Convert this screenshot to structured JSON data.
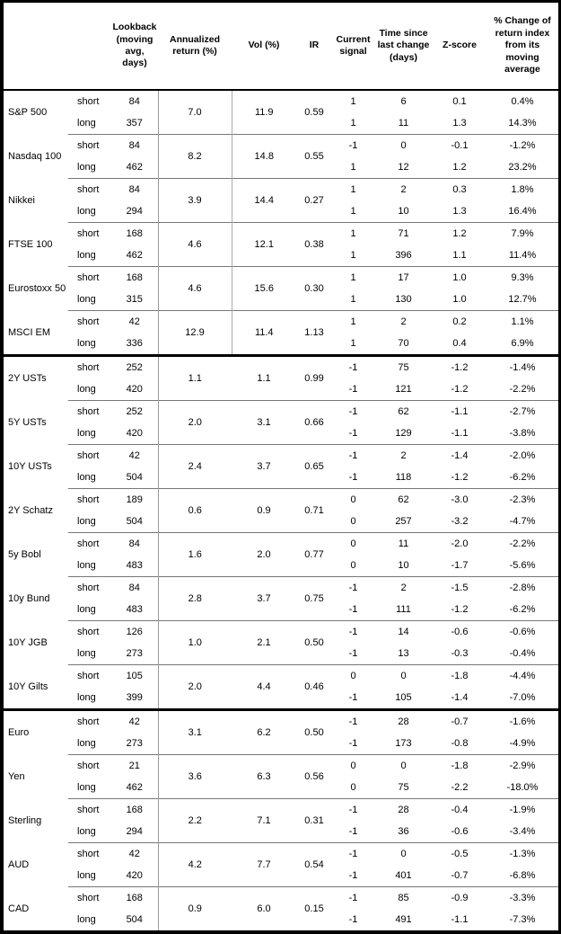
{
  "table": {
    "headers": [
      "",
      "",
      "Lookback (moving avg, days)",
      "Annualized return (%)",
      "Vol (%)",
      "IR",
      "Current signal",
      "Time since last change (days)",
      "Z-score",
      "% Change of return index from its moving average"
    ],
    "row_labels": {
      "short": "short",
      "long": "long"
    },
    "groups": [
      {
        "asset": "S&P 500",
        "section": "equities",
        "annualized_return_pct": "7.0",
        "vol_pct": "11.9",
        "ir": "0.59",
        "rows": [
          {
            "horizon": "short",
            "lookback": "84",
            "current_signal": "1",
            "days_since_change": "6",
            "z_score": "0.1",
            "pct_change_from_ma": "0.4%"
          },
          {
            "horizon": "long",
            "lookback": "357",
            "current_signal": "1",
            "days_since_change": "11",
            "z_score": "1.3",
            "pct_change_from_ma": "14.3%"
          }
        ]
      },
      {
        "asset": "Nasdaq 100",
        "section": "equities",
        "annualized_return_pct": "8.2",
        "vol_pct": "14.8",
        "ir": "0.55",
        "rows": [
          {
            "horizon": "short",
            "lookback": "84",
            "current_signal": "-1",
            "days_since_change": "0",
            "z_score": "-0.1",
            "pct_change_from_ma": "-1.2%"
          },
          {
            "horizon": "long",
            "lookback": "462",
            "current_signal": "1",
            "days_since_change": "12",
            "z_score": "1.2",
            "pct_change_from_ma": "23.2%"
          }
        ]
      },
      {
        "asset": "Nikkei",
        "section": "equities",
        "annualized_return_pct": "3.9",
        "vol_pct": "14.4",
        "ir": "0.27",
        "rows": [
          {
            "horizon": "short",
            "lookback": "84",
            "current_signal": "1",
            "days_since_change": "2",
            "z_score": "0.3",
            "pct_change_from_ma": "1.8%"
          },
          {
            "horizon": "long",
            "lookback": "294",
            "current_signal": "1",
            "days_since_change": "10",
            "z_score": "1.3",
            "pct_change_from_ma": "16.4%"
          }
        ]
      },
      {
        "asset": "FTSE 100",
        "section": "equities",
        "annualized_return_pct": "4.6",
        "vol_pct": "12.1",
        "ir": "0.38",
        "rows": [
          {
            "horizon": "short",
            "lookback": "168",
            "current_signal": "1",
            "days_since_change": "71",
            "z_score": "1.2",
            "pct_change_from_ma": "7.9%"
          },
          {
            "horizon": "long",
            "lookback": "462",
            "current_signal": "1",
            "days_since_change": "396",
            "z_score": "1.1",
            "pct_change_from_ma": "11.4%"
          }
        ]
      },
      {
        "asset": "Eurostoxx 50",
        "section": "equities",
        "annualized_return_pct": "4.6",
        "vol_pct": "15.6",
        "ir": "0.30",
        "rows": [
          {
            "horizon": "short",
            "lookback": "168",
            "current_signal": "1",
            "days_since_change": "17",
            "z_score": "1.0",
            "pct_change_from_ma": "9.3%"
          },
          {
            "horizon": "long",
            "lookback": "315",
            "current_signal": "1",
            "days_since_change": "130",
            "z_score": "1.0",
            "pct_change_from_ma": "12.7%"
          }
        ]
      },
      {
        "asset": "MSCI EM",
        "section": "equities",
        "annualized_return_pct": "12.9",
        "vol_pct": "11.4",
        "ir": "1.13",
        "rows": [
          {
            "horizon": "short",
            "lookback": "42",
            "current_signal": "1",
            "days_since_change": "2",
            "z_score": "0.2",
            "pct_change_from_ma": "1.1%"
          },
          {
            "horizon": "long",
            "lookback": "336",
            "current_signal": "1",
            "days_since_change": "70",
            "z_score": "0.4",
            "pct_change_from_ma": "6.9%"
          }
        ]
      },
      {
        "asset": "2Y USTs",
        "section": "bonds",
        "annualized_return_pct": "1.1",
        "vol_pct": "1.1",
        "ir": "0.99",
        "rows": [
          {
            "horizon": "short",
            "lookback": "252",
            "current_signal": "-1",
            "days_since_change": "75",
            "z_score": "-1.2",
            "pct_change_from_ma": "-1.4%"
          },
          {
            "horizon": "long",
            "lookback": "420",
            "current_signal": "-1",
            "days_since_change": "121",
            "z_score": "-1.2",
            "pct_change_from_ma": "-2.2%"
          }
        ]
      },
      {
        "asset": "5Y USTs",
        "section": "bonds",
        "annualized_return_pct": "2.0",
        "vol_pct": "3.1",
        "ir": "0.66",
        "rows": [
          {
            "horizon": "short",
            "lookback": "252",
            "current_signal": "-1",
            "days_since_change": "62",
            "z_score": "-1.1",
            "pct_change_from_ma": "-2.7%"
          },
          {
            "horizon": "long",
            "lookback": "420",
            "current_signal": "-1",
            "days_since_change": "129",
            "z_score": "-1.1",
            "pct_change_from_ma": "-3.8%"
          }
        ]
      },
      {
        "asset": "10Y USTs",
        "section": "bonds",
        "annualized_return_pct": "2.4",
        "vol_pct": "3.7",
        "ir": "0.65",
        "rows": [
          {
            "horizon": "short",
            "lookback": "42",
            "current_signal": "-1",
            "days_since_change": "2",
            "z_score": "-1.4",
            "pct_change_from_ma": "-2.0%"
          },
          {
            "horizon": "long",
            "lookback": "504",
            "current_signal": "-1",
            "days_since_change": "118",
            "z_score": "-1.2",
            "pct_change_from_ma": "-6.2%"
          }
        ]
      },
      {
        "asset": "2Y Schatz",
        "section": "bonds",
        "annualized_return_pct": "0.6",
        "vol_pct": "0.9",
        "ir": "0.71",
        "rows": [
          {
            "horizon": "short",
            "lookback": "189",
            "current_signal": "0",
            "days_since_change": "62",
            "z_score": "-3.0",
            "pct_change_from_ma": "-2.3%"
          },
          {
            "horizon": "long",
            "lookback": "504",
            "current_signal": "0",
            "days_since_change": "257",
            "z_score": "-3.2",
            "pct_change_from_ma": "-4.7%"
          }
        ]
      },
      {
        "asset": "5y Bobl",
        "section": "bonds",
        "annualized_return_pct": "1.6",
        "vol_pct": "2.0",
        "ir": "0.77",
        "rows": [
          {
            "horizon": "short",
            "lookback": "84",
            "current_signal": "0",
            "days_since_change": "11",
            "z_score": "-2.0",
            "pct_change_from_ma": "-2.2%"
          },
          {
            "horizon": "long",
            "lookback": "483",
            "current_signal": "0",
            "days_since_change": "10",
            "z_score": "-1.7",
            "pct_change_from_ma": "-5.6%"
          }
        ]
      },
      {
        "asset": "10y Bund",
        "section": "bonds",
        "annualized_return_pct": "2.8",
        "vol_pct": "3.7",
        "ir": "0.75",
        "rows": [
          {
            "horizon": "short",
            "lookback": "84",
            "current_signal": "-1",
            "days_since_change": "2",
            "z_score": "-1.5",
            "pct_change_from_ma": "-2.8%"
          },
          {
            "horizon": "long",
            "lookback": "483",
            "current_signal": "-1",
            "days_since_change": "111",
            "z_score": "-1.2",
            "pct_change_from_ma": "-6.2%"
          }
        ]
      },
      {
        "asset": "10Y JGB",
        "section": "bonds",
        "annualized_return_pct": "1.0",
        "vol_pct": "2.1",
        "ir": "0.50",
        "rows": [
          {
            "horizon": "short",
            "lookback": "126",
            "current_signal": "-1",
            "days_since_change": "14",
            "z_score": "-0.6",
            "pct_change_from_ma": "-0.6%"
          },
          {
            "horizon": "long",
            "lookback": "273",
            "current_signal": "-1",
            "days_since_change": "13",
            "z_score": "-0.3",
            "pct_change_from_ma": "-0.4%"
          }
        ]
      },
      {
        "asset": "10Y Gilts",
        "section": "bonds",
        "annualized_return_pct": "2.0",
        "vol_pct": "4.4",
        "ir": "0.46",
        "rows": [
          {
            "horizon": "short",
            "lookback": "105",
            "current_signal": "0",
            "days_since_change": "0",
            "z_score": "-1.8",
            "pct_change_from_ma": "-4.4%"
          },
          {
            "horizon": "long",
            "lookback": "399",
            "current_signal": "-1",
            "days_since_change": "105",
            "z_score": "-1.4",
            "pct_change_from_ma": "-7.0%"
          }
        ]
      },
      {
        "asset": "Euro",
        "section": "fx",
        "annualized_return_pct": "3.1",
        "vol_pct": "6.2",
        "ir": "0.50",
        "rows": [
          {
            "horizon": "short",
            "lookback": "42",
            "current_signal": "-1",
            "days_since_change": "28",
            "z_score": "-0.7",
            "pct_change_from_ma": "-1.6%"
          },
          {
            "horizon": "long",
            "lookback": "273",
            "current_signal": "-1",
            "days_since_change": "173",
            "z_score": "-0.8",
            "pct_change_from_ma": "-4.9%"
          }
        ]
      },
      {
        "asset": "Yen",
        "section": "fx",
        "annualized_return_pct": "3.6",
        "vol_pct": "6.3",
        "ir": "0.56",
        "rows": [
          {
            "horizon": "short",
            "lookback": "21",
            "current_signal": "0",
            "days_since_change": "0",
            "z_score": "-1.8",
            "pct_change_from_ma": "-2.9%"
          },
          {
            "horizon": "long",
            "lookback": "462",
            "current_signal": "0",
            "days_since_change": "75",
            "z_score": "-2.2",
            "pct_change_from_ma": "-18.0%"
          }
        ]
      },
      {
        "asset": "Sterling",
        "section": "fx",
        "annualized_return_pct": "2.2",
        "vol_pct": "7.1",
        "ir": "0.31",
        "rows": [
          {
            "horizon": "short",
            "lookback": "168",
            "current_signal": "-1",
            "days_since_change": "28",
            "z_score": "-0.4",
            "pct_change_from_ma": "-1.9%"
          },
          {
            "horizon": "long",
            "lookback": "294",
            "current_signal": "-1",
            "days_since_change": "36",
            "z_score": "-0.6",
            "pct_change_from_ma": "-3.4%"
          }
        ]
      },
      {
        "asset": "AUD",
        "section": "fx",
        "annualized_return_pct": "4.2",
        "vol_pct": "7.7",
        "ir": "0.54",
        "rows": [
          {
            "horizon": "short",
            "lookback": "42",
            "current_signal": "-1",
            "days_since_change": "0",
            "z_score": "-0.5",
            "pct_change_from_ma": "-1.3%"
          },
          {
            "horizon": "long",
            "lookback": "420",
            "current_signal": "-1",
            "days_since_change": "401",
            "z_score": "-0.7",
            "pct_change_from_ma": "-6.8%"
          }
        ]
      },
      {
        "asset": "CAD",
        "section": "fx",
        "annualized_return_pct": "0.9",
        "vol_pct": "6.0",
        "ir": "0.15",
        "rows": [
          {
            "horizon": "short",
            "lookback": "168",
            "current_signal": "-1",
            "days_since_change": "85",
            "z_score": "-0.9",
            "pct_change_from_ma": "-3.3%"
          },
          {
            "horizon": "long",
            "lookback": "504",
            "current_signal": "-1",
            "days_since_change": "491",
            "z_score": "-1.1",
            "pct_change_from_ma": "-7.3%"
          }
        ]
      }
    ]
  }
}
